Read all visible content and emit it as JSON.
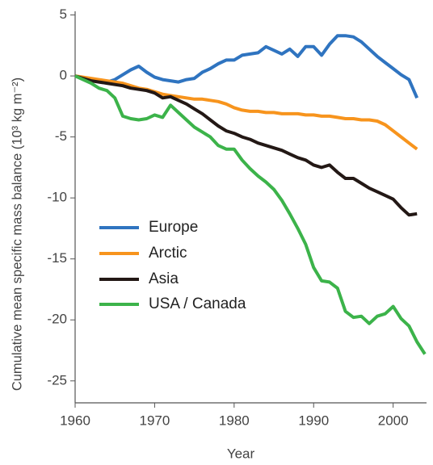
{
  "chart_data": {
    "type": "line",
    "x_label": "Year",
    "y_label": "Cumulative mean specific mass balance (10³ kg m⁻²)",
    "x": [
      1960,
      1961,
      1962,
      1963,
      1964,
      1965,
      1966,
      1967,
      1968,
      1969,
      1970,
      1971,
      1972,
      1973,
      1974,
      1975,
      1976,
      1977,
      1978,
      1979,
      1980,
      1981,
      1982,
      1983,
      1984,
      1985,
      1986,
      1987,
      1988,
      1989,
      1990,
      1991,
      1992,
      1993,
      1994,
      1995,
      1996,
      1997,
      1998,
      1999,
      2000,
      2001,
      2002,
      2003,
      2004
    ],
    "series": [
      {
        "name": "Europe",
        "color": "#2f74c0",
        "values": [
          0,
          -0.2,
          -0.3,
          -0.4,
          -0.5,
          -0.3,
          0.1,
          0.5,
          0.8,
          0.3,
          -0.1,
          -0.3,
          -0.4,
          -0.5,
          -0.3,
          -0.2,
          0.3,
          0.6,
          1.0,
          1.3,
          1.3,
          1.7,
          1.8,
          1.9,
          2.4,
          2.1,
          1.8,
          2.2,
          1.6,
          2.4,
          2.4,
          1.7,
          2.6,
          3.3,
          3.3,
          3.2,
          2.8,
          2.2,
          1.6,
          1.1,
          0.6,
          0.1,
          -0.3,
          -1.8,
          null
        ]
      },
      {
        "name": "Arctic",
        "color": "#f7941d",
        "values": [
          0,
          -0.1,
          -0.2,
          -0.3,
          -0.4,
          -0.5,
          -0.6,
          -0.8,
          -1.0,
          -1.1,
          -1.3,
          -1.5,
          -1.6,
          -1.7,
          -1.8,
          -1.9,
          -1.9,
          -2.0,
          -2.1,
          -2.3,
          -2.6,
          -2.8,
          -2.9,
          -2.9,
          -3.0,
          -3.0,
          -3.1,
          -3.1,
          -3.1,
          -3.2,
          -3.2,
          -3.3,
          -3.3,
          -3.4,
          -3.5,
          -3.5,
          -3.6,
          -3.6,
          -3.7,
          -4.0,
          -4.5,
          -5.0,
          -5.5,
          -6.0,
          null
        ]
      },
      {
        "name": "Asia",
        "color": "#231815",
        "values": [
          0,
          -0.2,
          -0.4,
          -0.5,
          -0.6,
          -0.7,
          -0.8,
          -1.0,
          -1.1,
          -1.2,
          -1.4,
          -1.8,
          -1.7,
          -2.0,
          -2.3,
          -2.7,
          -3.1,
          -3.6,
          -4.1,
          -4.5,
          -4.7,
          -5.0,
          -5.2,
          -5.5,
          -5.7,
          -5.9,
          -6.1,
          -6.4,
          -6.7,
          -6.9,
          -7.3,
          -7.5,
          -7.3,
          -7.9,
          -8.4,
          -8.4,
          -8.8,
          -9.2,
          -9.5,
          -9.8,
          -10.1,
          -10.8,
          -11.4,
          -11.3,
          null
        ]
      },
      {
        "name": "USA / Canada",
        "color": "#3cb34a",
        "values": [
          0,
          -0.3,
          -0.6,
          -1.0,
          -1.2,
          -1.8,
          -3.3,
          -3.5,
          -3.6,
          -3.5,
          -3.2,
          -3.4,
          -2.4,
          -3.0,
          -3.6,
          -4.2,
          -4.6,
          -5.0,
          -5.7,
          -6.0,
          -6.0,
          -6.9,
          -7.6,
          -8.2,
          -8.7,
          -9.3,
          -10.2,
          -11.3,
          -12.5,
          -13.8,
          -15.7,
          -16.8,
          -16.9,
          -17.4,
          -19.3,
          -19.8,
          -19.7,
          -20.3,
          -19.7,
          -19.5,
          -18.9,
          -19.9,
          -20.5,
          -21.8,
          -22.8
        ]
      }
    ],
    "xlim": [
      1960,
      2004.2
    ],
    "xticks": [
      1960,
      1970,
      1980,
      1990,
      2000
    ],
    "ylim": [
      -26.8,
      5.3
    ],
    "yticks": [
      5,
      0,
      -5,
      -10,
      -15,
      -20,
      -25
    ],
    "legend": "lower-left"
  }
}
